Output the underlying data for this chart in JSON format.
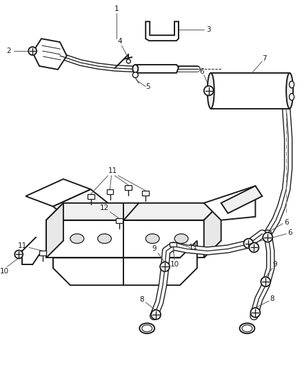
{
  "bg_color": "#ffffff",
  "line_color": "#1a1a1a",
  "label_color": "#1a1a1a",
  "fig_width": 4.38,
  "fig_height": 5.33,
  "dpi": 100
}
